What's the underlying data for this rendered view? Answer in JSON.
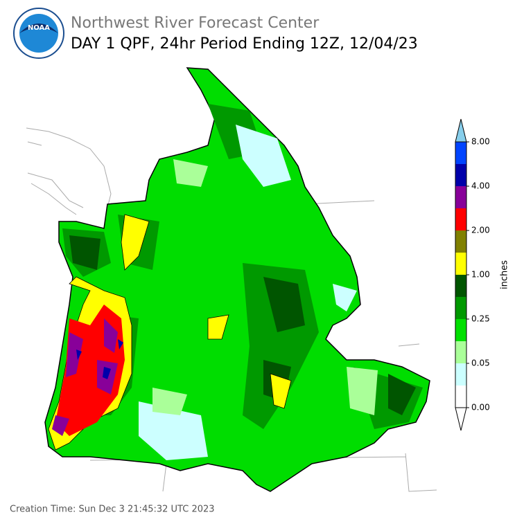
{
  "header": {
    "title": "Northwest River Forecast Center",
    "subtitle": "DAY 1 QPF, 24hr Period Ending 12Z, 12/04/23",
    "logo_text": "NOAA"
  },
  "colorbar": {
    "label": "inches",
    "ticks": [
      "0.00",
      "0.05",
      "0.25",
      "1.00",
      "2.00",
      "4.00",
      "8.00"
    ],
    "colors": [
      "#ffffff",
      "#ccffff",
      "#aaff99",
      "#00e000",
      "#009900",
      "#005500",
      "#ffff00",
      "#808000",
      "#ff0000",
      "#880099",
      "#0000aa",
      "#0044ff"
    ],
    "under_color": "#ffffff",
    "over_color": "#87ceeb"
  },
  "footer": {
    "creation_time": "Creation Time: Sun Dec 3 21:45:32 UTC 2023"
  }
}
